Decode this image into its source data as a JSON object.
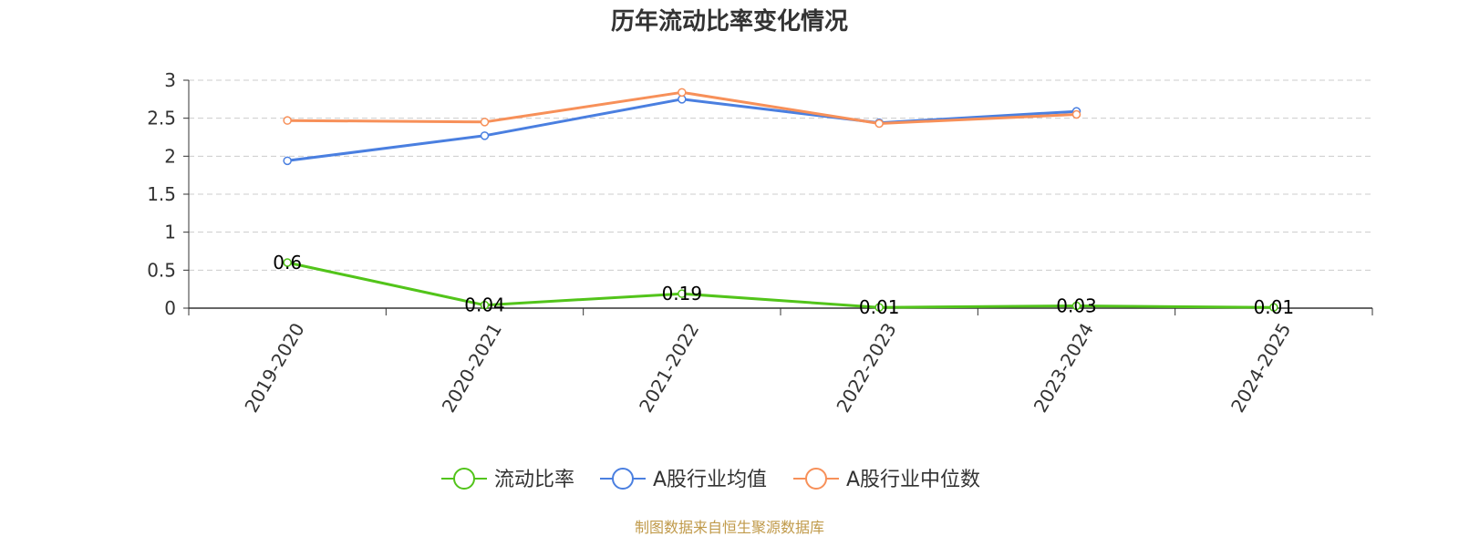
{
  "chart_data": {
    "type": "line",
    "title": "历年流动比率变化情况",
    "categories": [
      "2019-2020",
      "2020-2021",
      "2021-2022",
      "2022-2023",
      "2023-2024",
      "2024-2025"
    ],
    "ylim": [
      0,
      3
    ],
    "yticks": [
      "0",
      "0.5",
      "1",
      "1.5",
      "2",
      "2.5",
      "3"
    ],
    "grid": true,
    "legend_position": "bottom",
    "series": [
      {
        "name": "流动比率",
        "color": "#52c41a",
        "values": [
          0.6,
          0.04,
          0.19,
          0.01,
          0.03,
          0.01
        ],
        "labels": [
          "0.6",
          "0.04",
          "0.19",
          "0.01",
          "0.03",
          "0.01"
        ]
      },
      {
        "name": "A股行业均值",
        "color": "#4a7fe0",
        "values": [
          1.94,
          2.27,
          2.75,
          2.44,
          2.59,
          null
        ]
      },
      {
        "name": "A股行业中位数",
        "color": "#f79059",
        "values": [
          2.47,
          2.45,
          2.84,
          2.43,
          2.55,
          null
        ]
      }
    ]
  },
  "source": "制图数据来自恒生聚源数据库"
}
